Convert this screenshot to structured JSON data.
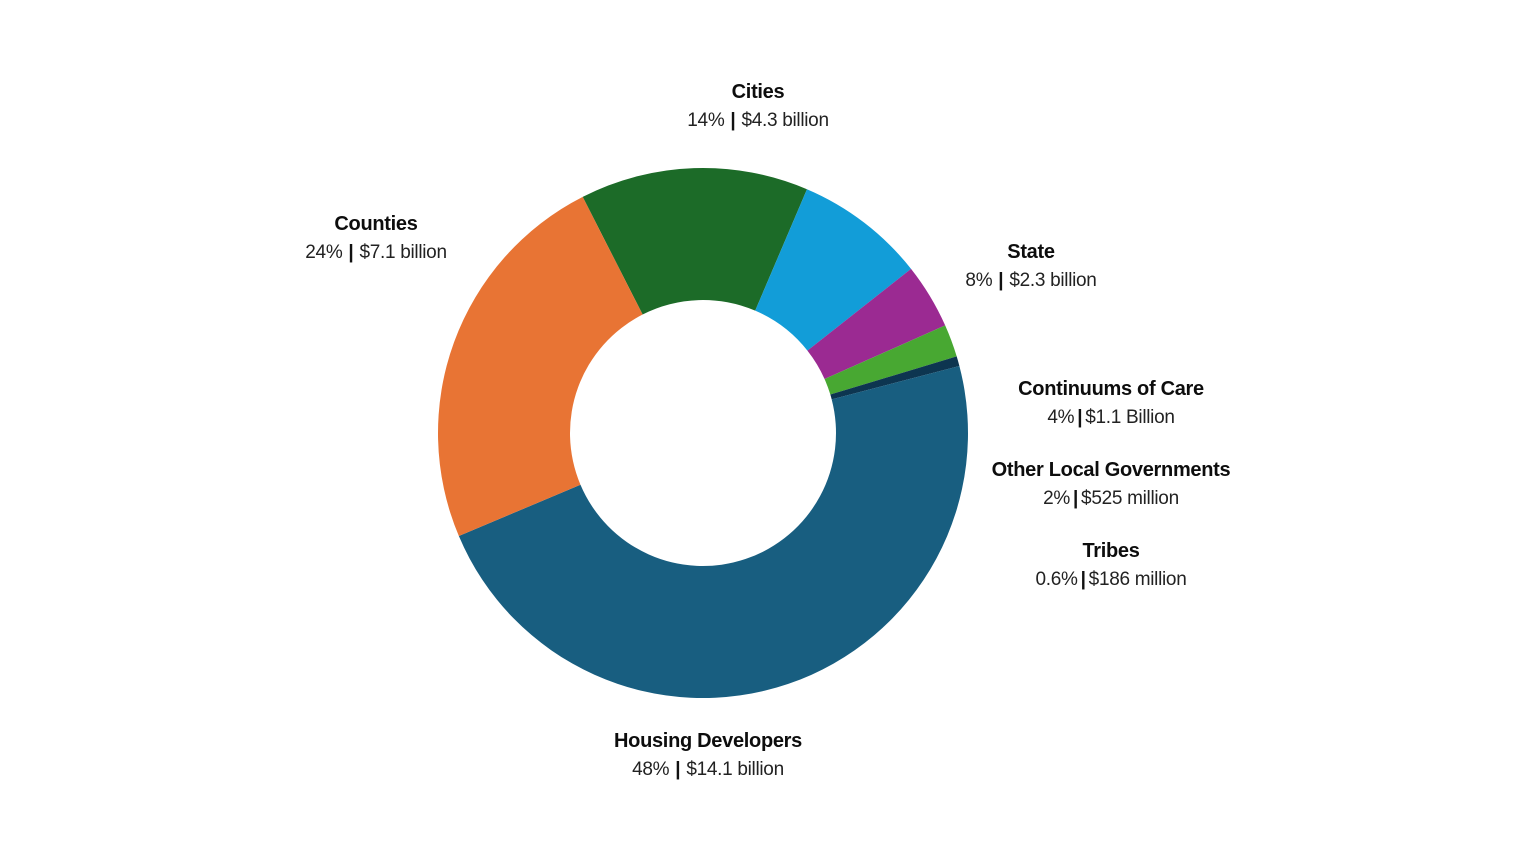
{
  "chart_data": {
    "type": "pie",
    "variant": "donut",
    "title": "",
    "slices": [
      {
        "name": "Cities",
        "percent": 14,
        "percent_label": "14%",
        "amount": "$4.3 billion",
        "color": "#1c6b28"
      },
      {
        "name": "State",
        "percent": 8,
        "percent_label": "8%",
        "amount": "$2.3 billion",
        "color": "#129dd8"
      },
      {
        "name": "Continuums of Care",
        "percent": 4,
        "percent_label": "4%",
        "amount": "$1.1 Billion",
        "color": "#9b2a92"
      },
      {
        "name": "Other Local Governments",
        "percent": 2,
        "percent_label": "2%",
        "amount": "$525 million",
        "color": "#48a832"
      },
      {
        "name": "Tribes",
        "percent": 0.6,
        "percent_label": "0.6%",
        "amount": "$186 million",
        "color": "#0d3550"
      },
      {
        "name": "Housing Developers",
        "percent": 48,
        "percent_label": "48%",
        "amount": "$14.1 billion",
        "color": "#185e80"
      },
      {
        "name": "Counties",
        "percent": 24,
        "percent_label": "24%",
        "amount": "$7.1 billion",
        "color": "#e87434"
      }
    ]
  }
}
